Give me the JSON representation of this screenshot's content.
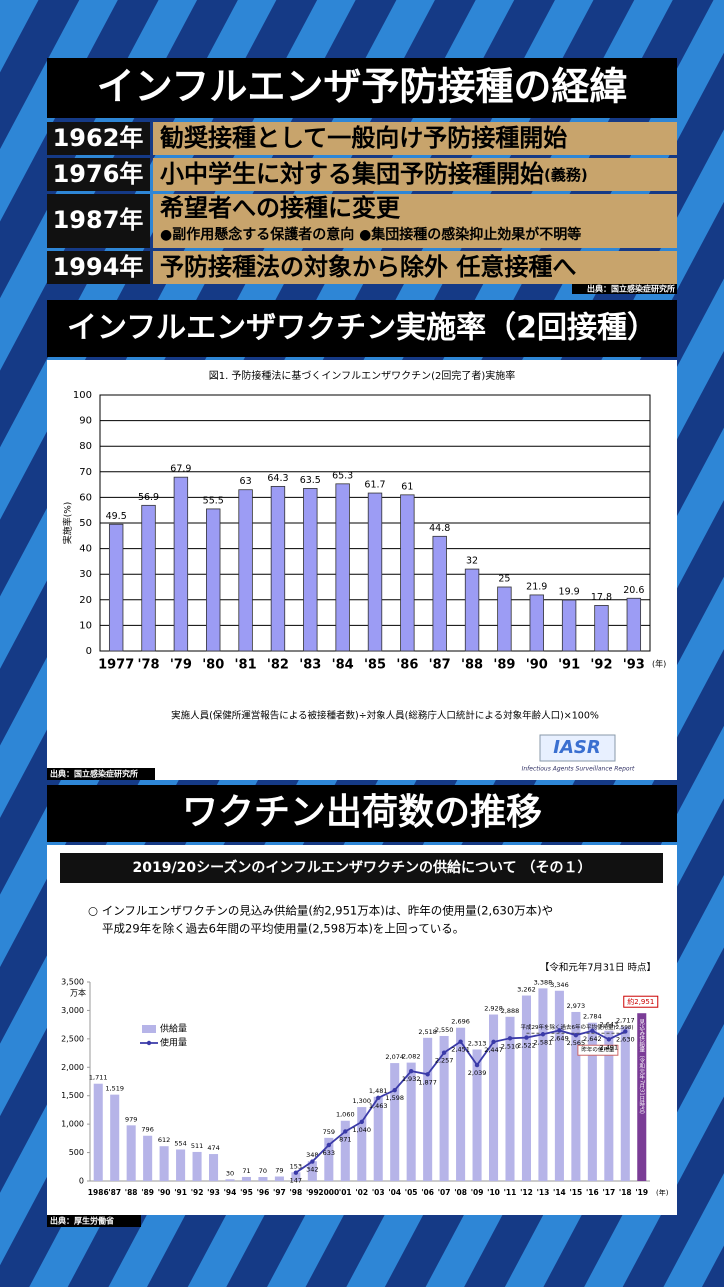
{
  "history": {
    "title": "インフルエンザ予防接種の経緯",
    "rows": [
      {
        "year": "1962年",
        "text": "勧奨接種として一般向け予防接種開始"
      },
      {
        "year": "1976年",
        "text": "小中学生に対する集団予防接種開始",
        "suffix": "(義務)"
      },
      {
        "year": "1987年",
        "text": "希望者への接種に変更",
        "note": "●副作用懸念する保護者の意向 ●集団接種の感染抑止効果が不明等"
      },
      {
        "year": "1994年",
        "text": "予防接種法の対象から除外 任意接種へ"
      }
    ],
    "source": "出典：国立感染症研究所"
  },
  "chart_data": [
    {
      "type": "bar",
      "title": "インフルエンザワクチン実施率（2回接種）",
      "subtitle": "図1. 予防接種法に基づくインフルエンザワクチン(2回完了者)実施率",
      "categories": [
        "1977",
        "'78",
        "'79",
        "'80",
        "'81",
        "'82",
        "'83",
        "'84",
        "'85",
        "'86",
        "'87",
        "'88",
        "'89",
        "'90",
        "'91",
        "'92",
        "'93"
      ],
      "values": [
        49.5,
        56.9,
        67.9,
        55.5,
        63,
        64.3,
        63.5,
        65.3,
        61.7,
        61,
        44.8,
        32,
        25,
        21.9,
        19.9,
        17.8,
        20.6
      ],
      "color": "#9c9cf4",
      "ylim": [
        0,
        100
      ],
      "yticks": [
        0,
        10,
        20,
        30,
        40,
        50,
        60,
        70,
        80,
        90,
        100
      ],
      "grid": true,
      "xlabel": "(年)",
      "ylabel": "実施率(%)",
      "note": "実施人員(保健所運営報告による被接種者数)÷対象人員(総務庁人口統計による対象年齢人口)×100%",
      "logo": "IASR",
      "logo_caption": "Infectious Agents Surveillance Report",
      "source": "出典：国立感染症研究所"
    },
    {
      "type": "combo",
      "title": "ワクチン出荷数の推移",
      "subtitle": "2019/20シーズンのインフルエンザワクチンの供給について （その１）",
      "lines": [
        "○ インフルエンザワクチンの見込み供給量(約2,951万本)は、昨年の使用量(2,630万本)や",
        "平成29年を除く過去6年間の平均使用量(2,598万本)を上回っている。"
      ],
      "date_note": "【令和元年7月31日 時点】",
      "unit": "万本",
      "xlabel": "(年)",
      "categories": [
        "1986",
        "'87",
        "'88",
        "'89",
        "'90",
        "'91",
        "'92",
        "'93",
        "'94",
        "'95",
        "'96",
        "'97",
        "'98",
        "'99",
        "2000",
        "'01",
        "'02",
        "'03",
        "'04",
        "'05",
        "'06",
        "'07",
        "'08",
        "'09",
        "'10",
        "'11",
        "'12",
        "'13",
        "'14",
        "'15",
        "'16",
        "'17",
        "'18",
        "'19"
      ],
      "series": [
        {
          "name": "供給量",
          "color": "#b6b4e8",
          "estimate_color": "#7a3c96",
          "values": [
            1711,
            1519,
            979,
            796,
            612,
            554,
            511,
            474,
            30,
            71,
            70,
            79,
            153,
            348,
            759,
            1060,
            1300,
            1481,
            2074,
            2082,
            2518,
            2550,
            2696,
            2313,
            2928,
            2888,
            3262,
            3388,
            3346,
            2973,
            2784,
            2643,
            2717,
            2951
          ],
          "value_labels": [
            "1,711",
            "1,519",
            "979",
            "796",
            "612",
            "554",
            "511",
            "474",
            "30",
            "71",
            "70",
            "79",
            "153",
            "348",
            "759",
            "1,060",
            "1,300",
            "1,481",
            "2,074",
            "2,082",
            "2,518",
            "2,550",
            "2,696",
            "2,313",
            "2,928",
            "2,888",
            "3,262",
            "3,388",
            "3,346",
            "2,973",
            "2,784",
            "2,643",
            "2,717",
            null
          ]
        },
        {
          "name": "使用量",
          "color": "#3a3aa8",
          "values": [
            null,
            null,
            null,
            null,
            null,
            null,
            null,
            null,
            null,
            null,
            null,
            null,
            147,
            342,
            633,
            871,
            1040,
            1463,
            1598,
            1932,
            1877,
            2257,
            2451,
            2039,
            2447,
            2510,
            2522,
            2581,
            2649,
            2565,
            2642,
            2491,
            2630,
            null
          ],
          "value_labels": [
            null,
            null,
            null,
            null,
            null,
            null,
            null,
            null,
            null,
            null,
            null,
            null,
            "147",
            "342",
            "633",
            "871",
            "1,040",
            "1,463",
            "1,598",
            "1,932",
            "1,877",
            "2,257",
            "2,451",
            "2,039",
            "2,447",
            "2,510",
            "2,522",
            "2,581",
            "2,649",
            "2,565",
            "2,642",
            "2,491",
            "2,630",
            null
          ]
        }
      ],
      "ylim": [
        0,
        3500
      ],
      "yticks": [
        0,
        {
          "value": 500,
          "label": "500"
        },
        {
          "value": 1000,
          "label": "1,000"
        },
        {
          "value": 1500,
          "label": "1,500"
        },
        {
          "value": 2000,
          "label": "2,000"
        },
        {
          "value": 2500,
          "label": "2,500"
        },
        {
          "value": 3000,
          "label": "3,000"
        },
        {
          "value": 3500,
          "label": "3,500"
        }
      ],
      "grid": false,
      "estimate_label": "約2,951",
      "estimate_note": "見込み供給量（令和元年7月31日時点）",
      "average": {
        "value": 2598,
        "label": "平成29年を除く過去6年の平均使用量(2,598)"
      },
      "last_year_label": "昨年の使用量",
      "source": "出典：厚生労働省"
    }
  ]
}
